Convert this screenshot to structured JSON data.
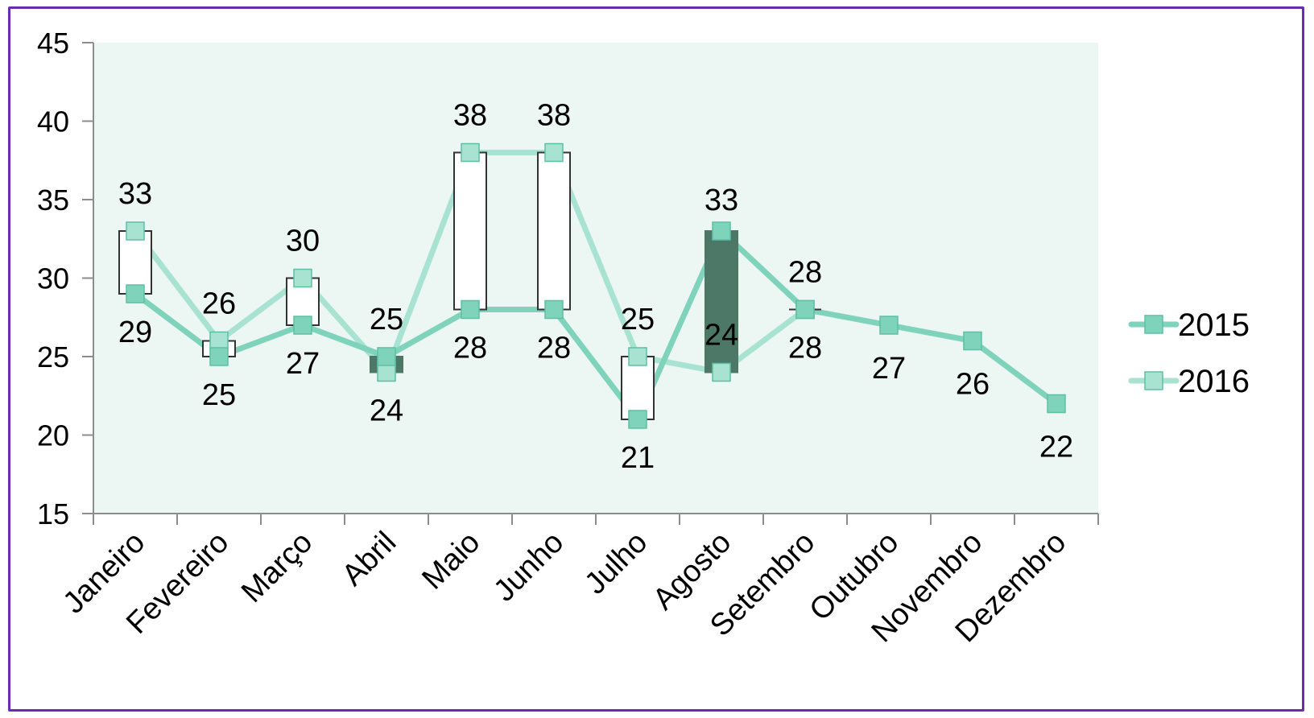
{
  "chart_data": {
    "type": "line",
    "categories": [
      "Janeiro",
      "Fevereiro",
      "Março",
      "Abril",
      "Maio",
      "Junho",
      "Julho",
      "Agosto",
      "Setembro",
      "Outubro",
      "Novembro",
      "Dezembro"
    ],
    "series": [
      {
        "name": "2015",
        "values": [
          29,
          25,
          27,
          25,
          28,
          28,
          21,
          33,
          28,
          27,
          26,
          22
        ],
        "color": "#7fd3bb"
      },
      {
        "name": "2016",
        "values": [
          33,
          26,
          30,
          24,
          38,
          38,
          25,
          24,
          28,
          null,
          null,
          null
        ],
        "color": "#a8e2d1"
      }
    ],
    "up_down_bars": true,
    "up_bar_color": "#ffffff",
    "down_bar_color": "#4d7868",
    "ylim": [
      15,
      45
    ],
    "yticks": [
      15,
      20,
      25,
      30,
      35,
      40,
      45
    ],
    "plot_background": "#ecf6f2",
    "grid": false,
    "legend": "right",
    "title": "",
    "xlabel": "",
    "ylabel": ""
  }
}
